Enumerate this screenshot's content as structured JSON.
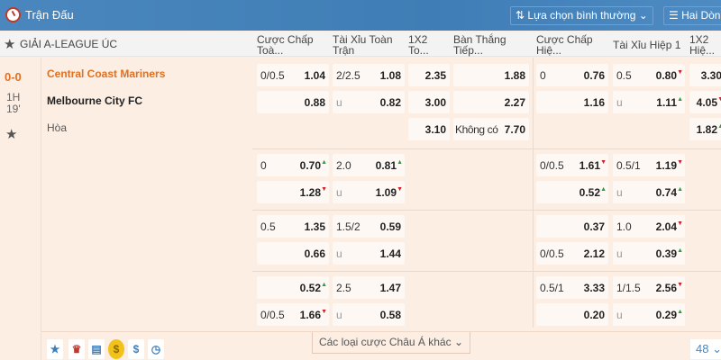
{
  "header": {
    "title": "Trận Đấu",
    "select_label": "Lựa chọn bình thường",
    "view_label": "Hai Dòng",
    "accent": "#3f7db6"
  },
  "league": {
    "name": "GIẢI A-LEAGUE ÚC"
  },
  "columns": [
    "Cược Chấp Toà...",
    "Tài Xỉu Toàn Trận",
    "1X2 To...",
    "Bàn Thắng Tiếp...",
    "Cược Chấp Hiệ...",
    "Tài Xỉu Hiệp 1",
    "1X2 Hiệ..."
  ],
  "match": {
    "score": "0-0",
    "period": "1H",
    "minute": "19'",
    "home": "Central Coast Mariners",
    "away": "Melbourne City FC",
    "draw": "Hòa"
  },
  "main_rows": [
    [
      {
        "l": "0/0.5",
        "v": "1.04"
      },
      {
        "l": "2/2.5",
        "v": "1.08"
      },
      {
        "l": "",
        "v": "2.35"
      },
      {
        "l": "",
        "v": "1.88"
      },
      {
        "l": "0",
        "v": "0.76"
      },
      {
        "l": "0.5",
        "v": "0.80",
        "t": "down"
      },
      {
        "l": "",
        "v": "3.30"
      }
    ],
    [
      {
        "l": "",
        "v": "0.88"
      },
      {
        "l": "u",
        "v": "0.82"
      },
      {
        "l": "",
        "v": "3.00"
      },
      {
        "l": "",
        "v": "2.27"
      },
      {
        "l": "",
        "v": "1.16"
      },
      {
        "l": "u",
        "v": "1.11",
        "t": "up"
      },
      {
        "l": "",
        "v": "4.05",
        "t": "down"
      }
    ],
    [
      null,
      null,
      {
        "l": "",
        "v": "3.10"
      },
      {
        "l": "Không có",
        "v": "7.70"
      },
      null,
      null,
      {
        "l": "",
        "v": "1.82",
        "t": "up"
      }
    ]
  ],
  "extra_blocks": [
    [
      [
        {
          "l": "0",
          "v": "0.70",
          "t": "up"
        },
        {
          "l": "2.0",
          "v": "0.81",
          "t": "up"
        },
        {
          "l": "0/0.5",
          "v": "1.61",
          "t": "down"
        },
        {
          "l": "0.5/1",
          "v": "1.19",
          "t": "down"
        }
      ],
      [
        {
          "l": "",
          "v": "1.28",
          "t": "down"
        },
        {
          "l": "u",
          "v": "1.09",
          "t": "down"
        },
        {
          "l": "",
          "v": "0.52",
          "t": "up"
        },
        {
          "l": "u",
          "v": "0.74",
          "t": "up"
        }
      ]
    ],
    [
      [
        {
          "l": "0.5",
          "v": "1.35"
        },
        {
          "l": "1.5/2",
          "v": "0.59"
        },
        {
          "l": "",
          "v": "0.37"
        },
        {
          "l": "1.0",
          "v": "2.04",
          "t": "down"
        }
      ],
      [
        {
          "l": "",
          "v": "0.66"
        },
        {
          "l": "u",
          "v": "1.44"
        },
        {
          "l": "0/0.5",
          "v": "2.12"
        },
        {
          "l": "u",
          "v": "0.39",
          "t": "up"
        }
      ]
    ],
    [
      [
        {
          "l": "",
          "v": "0.52",
          "t": "up"
        },
        {
          "l": "2.5",
          "v": "1.47"
        },
        {
          "l": "0.5/1",
          "v": "3.33"
        },
        {
          "l": "1/1.5",
          "v": "2.56",
          "t": "down"
        }
      ],
      [
        {
          "l": "0/0.5",
          "v": "1.66",
          "t": "down"
        },
        {
          "l": "u",
          "v": "0.58"
        },
        {
          "l": "",
          "v": "0.20"
        },
        {
          "l": "u",
          "v": "0.29",
          "t": "up"
        }
      ]
    ]
  ],
  "footer": {
    "more_label": "Các loại cược Châu Á khác",
    "page_size": "48",
    "icons": [
      "star-icon",
      "user-icon",
      "list-icon",
      "coin-icon",
      "dollar-icon",
      "clock-icon"
    ]
  }
}
